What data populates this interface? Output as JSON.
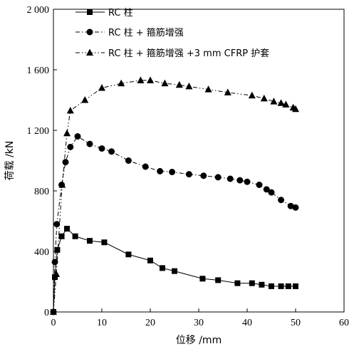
{
  "chart_data": {
    "type": "line",
    "xlabel": "位移 /mm",
    "ylabel": "荷载 /kN",
    "xlim": [
      0,
      60
    ],
    "ylim": [
      0,
      2000
    ],
    "xticks": [
      0,
      10,
      20,
      30,
      40,
      50,
      60
    ],
    "yticks": [
      0,
      400,
      800,
      1200,
      1600,
      2000
    ],
    "xtick_labels": [
      "0",
      "10",
      "20",
      "30",
      "40",
      "50",
      "60"
    ],
    "ytick_labels": [
      "0",
      "400",
      "800",
      "1 200",
      "1 600",
      "2 000"
    ],
    "grid": false,
    "legend_position": "top-left",
    "series": [
      {
        "name": "RC 柱",
        "marker": "square",
        "line_style": "solid",
        "x": [
          0,
          0.3,
          0.8,
          1.7,
          2.8,
          4.5,
          7.5,
          10.5,
          15.5,
          20.0,
          22.5,
          25.0,
          30.8,
          34.0,
          38.0,
          41.0,
          43.0,
          45.0,
          47.0,
          48.5,
          50.0
        ],
        "y": [
          0,
          230,
          410,
          500,
          550,
          500,
          470,
          460,
          380,
          340,
          290,
          270,
          220,
          210,
          190,
          190,
          180,
          170,
          170,
          170,
          170
        ]
      },
      {
        "name": "RC 柱 + 箍筋增强",
        "marker": "circle",
        "line_style": "dash-dot",
        "x": [
          0,
          0.3,
          0.7,
          1.7,
          2.5,
          3.5,
          5.0,
          7.5,
          10.0,
          12.0,
          15.5,
          19.0,
          22.0,
          24.5,
          28.0,
          31.0,
          34.0,
          36.5,
          38.5,
          40.0,
          42.5,
          44.0,
          45.0,
          47.0,
          49.0,
          50.0
        ],
        "y": [
          0,
          330,
          580,
          840,
          990,
          1090,
          1160,
          1110,
          1080,
          1060,
          1000,
          960,
          930,
          925,
          910,
          900,
          890,
          880,
          870,
          860,
          840,
          810,
          790,
          740,
          700,
          690
        ]
      },
      {
        "name": "RC 柱 + 箍筋增强 +3 mm CFRP 护套",
        "marker": "triangle",
        "line_style": "dash-dot-dot",
        "x": [
          0,
          0.6,
          1.8,
          2.8,
          3.5,
          6.5,
          10.0,
          14.0,
          18.0,
          20.0,
          23.0,
          26.0,
          28.0,
          32.0,
          36.0,
          41.0,
          43.5,
          45.5,
          47.0,
          48.0,
          49.5,
          50.0
        ],
        "y": [
          0,
          250,
          840,
          1180,
          1330,
          1400,
          1480,
          1510,
          1530,
          1530,
          1510,
          1500,
          1490,
          1470,
          1450,
          1430,
          1410,
          1390,
          1380,
          1370,
          1350,
          1340
        ]
      }
    ]
  }
}
